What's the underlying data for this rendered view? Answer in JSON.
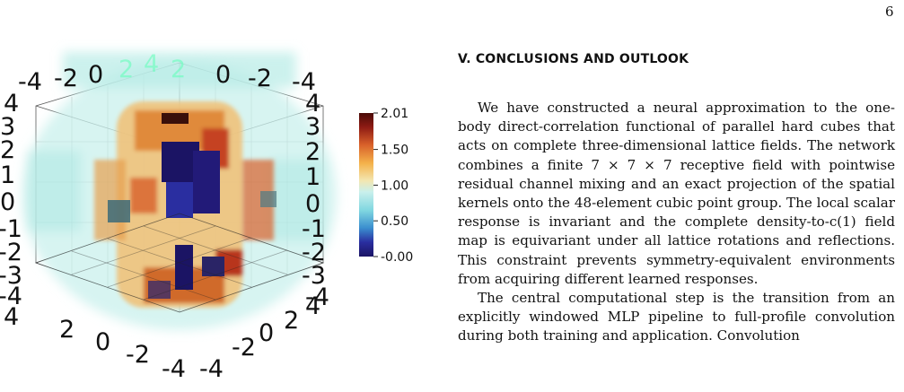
{
  "page_number": "6",
  "figure": {
    "colorbar": {
      "ticks": [
        "2.01",
        "1.50",
        "1.00",
        "0.50",
        "-0.00"
      ],
      "values": [
        2.01,
        1.5,
        1.0,
        0.5,
        0.0
      ],
      "min": 0.0,
      "max": 2.01,
      "colormap": [
        "#1b1464",
        "#2a2ea0",
        "#3b8fcf",
        "#7fd6e0",
        "#c9f0ec",
        "#f3e6b0",
        "#f4b24a",
        "#d8602a",
        "#8f1c14",
        "#4a0a07"
      ]
    },
    "axis_top": [
      "-4",
      "-2",
      "0",
      "2",
      "4",
      "2",
      "0",
      "-2",
      "-4"
    ],
    "axis_left": [
      "4",
      "3",
      "2",
      "1",
      "0",
      "-1",
      "-2",
      "-3",
      "-4",
      "4"
    ],
    "axis_right": [
      "4",
      "3",
      "2",
      "1",
      "0",
      "-1",
      "-2",
      "-3",
      "-4"
    ],
    "axis_bottom_left": [
      "2",
      "0",
      "-2",
      "-4"
    ],
    "axis_bottom_right": [
      "-4",
      "-2",
      "0",
      "2",
      "4"
    ]
  },
  "section": {
    "title": "V.   CONCLUSIONS AND OUTLOOK",
    "para1": "We have constructed a neural approximation to the one-body direct-correlation functional of parallel hard cubes that acts on complete three-dimensional lattice fields. The network combines a finite 7 × 7 × 7 receptive field with pointwise residual channel mixing and an exact projection of the spatial kernels onto the 48-element cubic point group. The local scalar response is invariant and the complete density-to-c(1) field map is equivariant under all lattice rotations and reflections. This constraint prevents symmetry-equivalent environments from acquiring different learned responses.",
    "para2": "The central computational step is the transition from an explicitly windowed MLP pipeline to full-profile convolution during both training and application. Convolution"
  }
}
